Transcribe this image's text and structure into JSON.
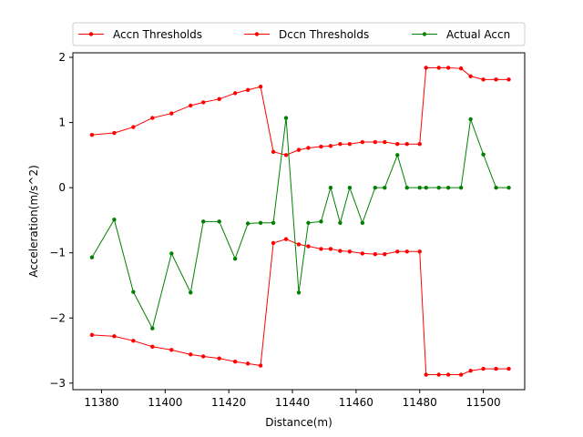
{
  "chart_data": {
    "type": "line",
    "xlabel": "Distance(m)",
    "ylabel": "Acceleration(m/s^2)",
    "xlim": [
      11371,
      11513
    ],
    "ylim": [
      -3.1,
      2.07
    ],
    "xticks": [
      11380,
      11400,
      11420,
      11440,
      11460,
      11480,
      11500
    ],
    "yticks": [
      -3,
      -2,
      -1,
      0,
      1,
      2
    ],
    "grid": false,
    "legend_position": "top-center",
    "x": [
      11377,
      11384,
      11390,
      11396,
      11402,
      11408,
      11412,
      11417,
      11422,
      11426,
      11430,
      11434,
      11438,
      11442,
      11445,
      11449,
      11452,
      11455,
      11458,
      11462,
      11466,
      11469,
      11473,
      11476,
      11480,
      11482,
      11486,
      11489,
      11493,
      11496,
      11500,
      11504,
      11508
    ],
    "series": [
      {
        "name": "Accn Thresholds",
        "color": "#ff0000",
        "values": [
          0.81,
          0.84,
          0.93,
          1.07,
          1.14,
          1.26,
          1.31,
          1.36,
          1.45,
          1.5,
          1.55,
          0.55,
          0.5,
          0.58,
          0.61,
          0.63,
          0.64,
          0.67,
          0.67,
          0.7,
          0.7,
          0.7,
          0.67,
          0.67,
          0.67,
          1.84,
          1.84,
          1.84,
          1.83,
          1.71,
          1.66,
          1.66,
          1.66
        ]
      },
      {
        "name": "Dccn Thresholds",
        "color": "#ff0000",
        "values": [
          -2.26,
          -2.28,
          -2.35,
          -2.44,
          -2.49,
          -2.56,
          -2.59,
          -2.62,
          -2.67,
          -2.7,
          -2.73,
          -0.85,
          -0.79,
          -0.87,
          -0.9,
          -0.94,
          -0.94,
          -0.97,
          -0.98,
          -1.01,
          -1.02,
          -1.02,
          -0.98,
          -0.98,
          -0.98,
          -2.87,
          -2.87,
          -2.87,
          -2.87,
          -2.81,
          -2.78,
          -2.78,
          -2.78
        ]
      },
      {
        "name": "Actual Accn",
        "color": "#008000",
        "values": [
          -1.07,
          -0.49,
          -1.6,
          -2.16,
          -1.01,
          -1.61,
          -0.52,
          -0.52,
          -1.09,
          -0.55,
          -0.54,
          -0.54,
          1.07,
          -1.61,
          -0.54,
          -0.52,
          0.0,
          -0.54,
          0.0,
          -0.54,
          0.0,
          0.0,
          0.5,
          0.0,
          0.0,
          0.0,
          0.0,
          0.0,
          0.0,
          1.05,
          0.51,
          0.0,
          0.0
        ]
      }
    ]
  }
}
